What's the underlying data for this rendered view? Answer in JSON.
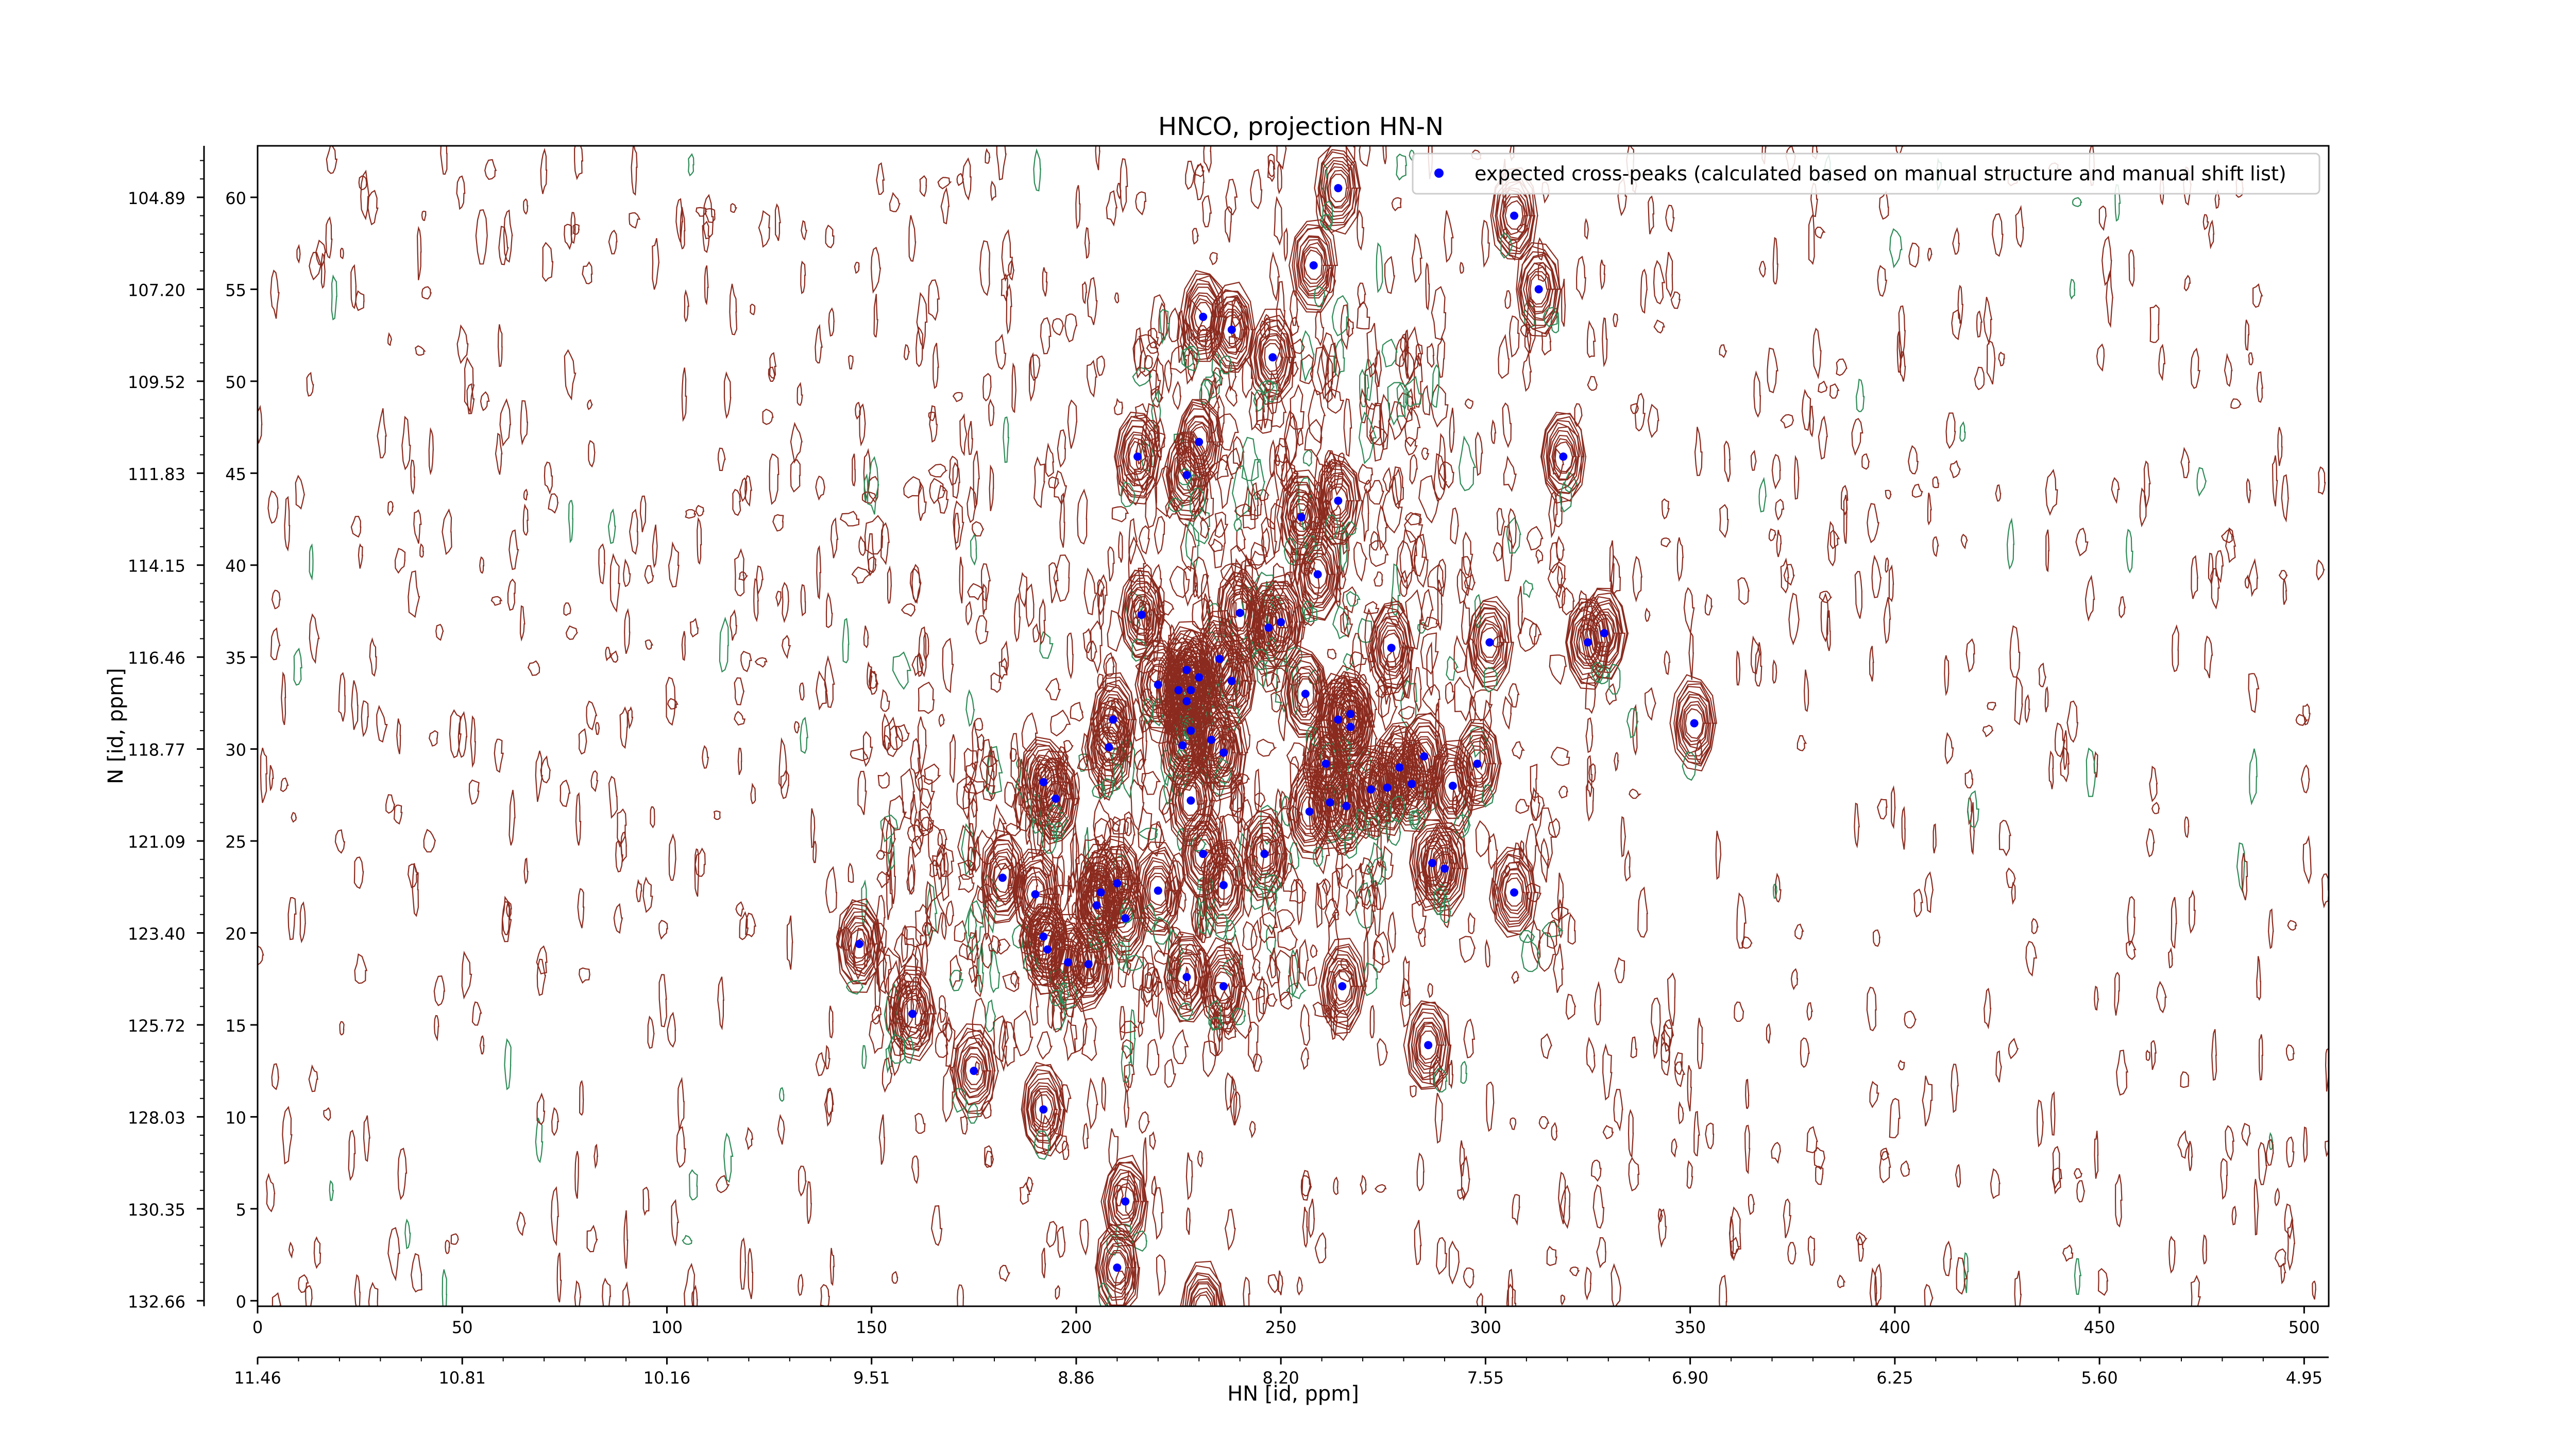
{
  "chart_data": {
    "type": "scatter",
    "title": "HNCO, projection HN-N",
    "xlabel": "HN [id, ppm]",
    "ylabel": "N [id, ppm]",
    "x_index_ticks": [
      "0",
      "50",
      "100",
      "150",
      "200",
      "250",
      "300",
      "350",
      "400",
      "450",
      "500"
    ],
    "x_ppm_ticks": [
      "11.46",
      "10.81",
      "10.16",
      "9.51",
      "8.86",
      "8.20",
      "7.55",
      "6.90",
      "6.25",
      "5.60",
      "4.95"
    ],
    "y_index_ticks": [
      "0",
      "5",
      "10",
      "15",
      "20",
      "25",
      "30",
      "35",
      "40",
      "45",
      "50",
      "55",
      "60"
    ],
    "y_ppm_ticks": [
      "132.66",
      "130.35",
      "128.03",
      "125.72",
      "123.40",
      "121.09",
      "118.77",
      "116.46",
      "114.15",
      "111.83",
      "109.52",
      "107.20",
      "104.89"
    ],
    "xlim": [
      0,
      506
    ],
    "ylim": [
      -0.3,
      62.8
    ],
    "legend": {
      "position": "top-right",
      "entry": "expected cross-peaks (calculated based on manual structure and manual shift list)",
      "marker_color": "#0000ff"
    },
    "colors": {
      "positive_contour": "#8b2a1e",
      "negative_contour": "#2e8b57",
      "marker": "#0000ff"
    },
    "series": [
      {
        "name": "expected cross-peaks (calculated based on manual structure and manual shift list)",
        "points": [
          [
            264,
            60.5
          ],
          [
            307,
            59.0
          ],
          [
            258,
            56.3
          ],
          [
            313,
            55.0
          ],
          [
            231,
            53.5
          ],
          [
            238,
            52.8
          ],
          [
            248,
            51.3
          ],
          [
            215,
            45.9
          ],
          [
            230,
            46.7
          ],
          [
            227,
            44.9
          ],
          [
            319,
            45.9
          ],
          [
            264,
            43.5
          ],
          [
            255,
            42.6
          ],
          [
            259,
            39.5
          ],
          [
            216,
            37.3
          ],
          [
            240,
            37.4
          ],
          [
            250,
            36.9
          ],
          [
            247,
            36.6
          ],
          [
            277,
            35.5
          ],
          [
            301,
            35.8
          ],
          [
            325,
            35.8
          ],
          [
            329,
            36.3
          ],
          [
            220,
            33.5
          ],
          [
            227,
            34.3
          ],
          [
            225,
            33.2
          ],
          [
            228,
            33.2
          ],
          [
            230,
            33.9
          ],
          [
            235,
            34.9
          ],
          [
            238,
            33.7
          ],
          [
            227,
            32.6
          ],
          [
            209,
            31.6
          ],
          [
            256,
            33.0
          ],
          [
            264,
            31.6
          ],
          [
            267,
            31.9
          ],
          [
            267,
            31.2
          ],
          [
            351,
            31.4
          ],
          [
            228,
            31.0
          ],
          [
            226,
            30.2
          ],
          [
            233,
            30.5
          ],
          [
            236,
            29.8
          ],
          [
            261,
            29.2
          ],
          [
            208,
            30.1
          ],
          [
            192,
            28.2
          ],
          [
            195,
            27.3
          ],
          [
            285,
            29.6
          ],
          [
            298,
            29.2
          ],
          [
            262,
            27.1
          ],
          [
            257,
            26.6
          ],
          [
            266,
            26.9
          ],
          [
            228,
            27.2
          ],
          [
            272,
            27.8
          ],
          [
            276,
            27.9
          ],
          [
            282,
            28.1
          ],
          [
            279,
            29.0
          ],
          [
            292,
            28.0
          ],
          [
            246,
            24.3
          ],
          [
            231,
            24.3
          ],
          [
            287,
            23.8
          ],
          [
            290,
            23.5
          ],
          [
            182,
            23.0
          ],
          [
            190,
            22.1
          ],
          [
            206,
            22.2
          ],
          [
            210,
            22.7
          ],
          [
            220,
            22.3
          ],
          [
            236,
            22.6
          ],
          [
            307,
            22.2
          ],
          [
            205,
            21.5
          ],
          [
            212,
            20.8
          ],
          [
            147,
            19.4
          ],
          [
            192,
            19.8
          ],
          [
            193,
            19.1
          ],
          [
            198,
            18.4
          ],
          [
            203,
            18.3
          ],
          [
            227,
            17.6
          ],
          [
            236,
            17.1
          ],
          [
            265,
            17.1
          ],
          [
            160,
            15.6
          ],
          [
            286,
            13.9
          ],
          [
            175,
            12.5
          ],
          [
            192,
            10.4
          ],
          [
            212,
            5.4
          ],
          [
            210,
            1.8
          ],
          [
            231,
            -0.5
          ]
        ]
      }
    ]
  }
}
